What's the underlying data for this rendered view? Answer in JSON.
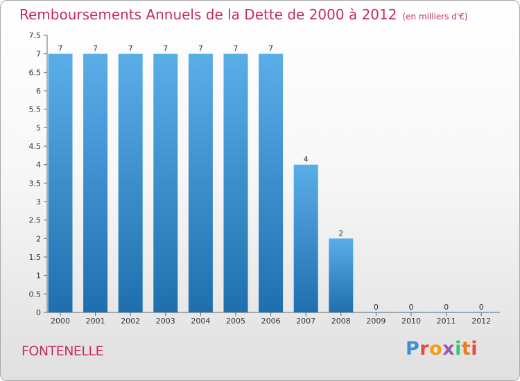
{
  "header": {
    "title": "Remboursements Annuels de la Dette de 2000 à 2012",
    "unit": "(en milliers d'€)"
  },
  "commune": "FONTENELLE",
  "brand": {
    "text": "Proxiti",
    "colors": [
      "#3a8fd8",
      "#e94b3c",
      "#f39c12",
      "#9b59b6",
      "#2ecc71",
      "#e67e22",
      "#e74c3c"
    ]
  },
  "colors": {
    "bar_light": "#5aaee8",
    "bar_dark": "#1f6fae",
    "title": "#c42a6a"
  },
  "chart_data": {
    "type": "bar",
    "categories": [
      "2000",
      "2001",
      "2002",
      "2003",
      "2004",
      "2005",
      "2006",
      "2007",
      "2008",
      "2009",
      "2010",
      "2011",
      "2012"
    ],
    "values": [
      7,
      7,
      7,
      7,
      7,
      7,
      7,
      4,
      2,
      0,
      0,
      0,
      0
    ],
    "data_labels": [
      "7",
      "7",
      "7",
      "7",
      "7",
      "7",
      "7",
      "4",
      "2",
      "0",
      "0",
      "0",
      "0"
    ],
    "ylim": [
      0,
      7.5
    ],
    "yticks": [
      "0",
      "0.5",
      "1",
      "1.5",
      "2",
      "2.5",
      "3",
      "3.5",
      "4",
      "4.5",
      "5",
      "5.5",
      "6",
      "6.5",
      "7",
      "7.5"
    ],
    "grid": false
  }
}
